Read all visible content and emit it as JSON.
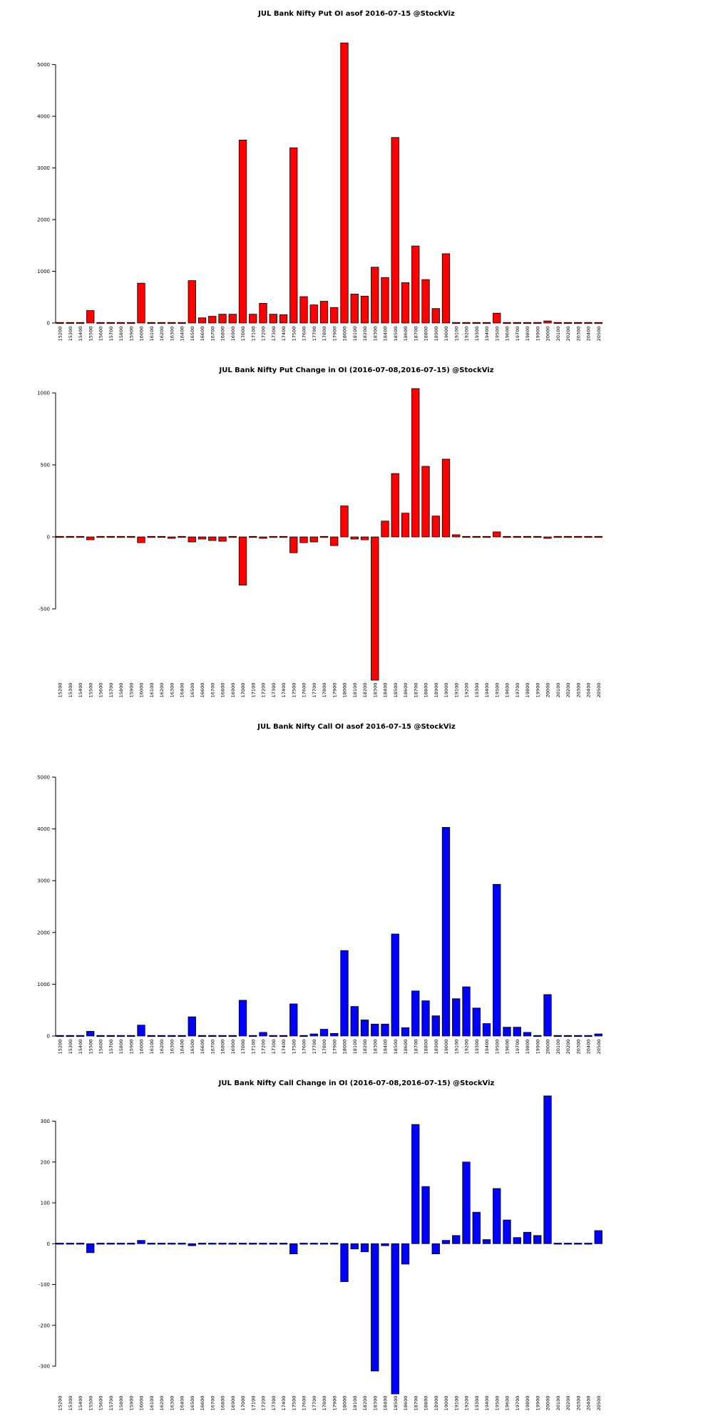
{
  "chart_data": [
    {
      "type": "bar",
      "title": "JUL Bank Nifty Put OI asof 2016-07-15 @StockViz",
      "bar_color": "#ff0000",
      "categories": [
        "15200",
        "15300",
        "15400",
        "15500",
        "15600",
        "15700",
        "15800",
        "15900",
        "16000",
        "16100",
        "16200",
        "16300",
        "16400",
        "16500",
        "16600",
        "16700",
        "16800",
        "16900",
        "17000",
        "17100",
        "17200",
        "17300",
        "17400",
        "17500",
        "17600",
        "17700",
        "17800",
        "17900",
        "18000",
        "18100",
        "18200",
        "18300",
        "18400",
        "18500",
        "18600",
        "18700",
        "18800",
        "18900",
        "19000",
        "19100",
        "19200",
        "19300",
        "19400",
        "19500",
        "19600",
        "19700",
        "19800",
        "19900",
        "20000",
        "20100",
        "20200",
        "20300",
        "20400",
        "20500"
      ],
      "values": [
        5,
        5,
        5,
        240,
        5,
        5,
        5,
        5,
        770,
        10,
        10,
        10,
        10,
        820,
        100,
        130,
        170,
        170,
        3540,
        170,
        380,
        170,
        160,
        3390,
        510,
        350,
        420,
        300,
        5420,
        560,
        520,
        1080,
        880,
        3590,
        780,
        1490,
        840,
        280,
        1340,
        10,
        10,
        5,
        5,
        190,
        5,
        5,
        5,
        5,
        40,
        5,
        5,
        5,
        5,
        5
      ],
      "yticks": [
        0,
        1000,
        2000,
        3000,
        4000,
        5000
      ],
      "ylim": [
        0,
        5450
      ]
    },
    {
      "type": "bar",
      "title": "JUL Bank Nifty Put Change in OI (2016-07-08,2016-07-15) @StockViz",
      "bar_color": "#ff0000",
      "categories": [
        "15200",
        "15300",
        "15400",
        "15500",
        "15600",
        "15700",
        "15800",
        "15900",
        "16000",
        "16100",
        "16200",
        "16300",
        "16400",
        "16500",
        "16600",
        "16700",
        "16800",
        "16900",
        "17000",
        "17100",
        "17200",
        "17300",
        "17400",
        "17500",
        "17600",
        "17700",
        "17800",
        "17900",
        "18000",
        "18100",
        "18200",
        "18300",
        "18400",
        "18500",
        "18600",
        "18700",
        "18800",
        "18900",
        "19000",
        "19100",
        "19200",
        "19300",
        "19400",
        "19500",
        "19600",
        "19700",
        "19800",
        "19900",
        "20000",
        "20100",
        "20200",
        "20300",
        "20400",
        "20500"
      ],
      "values": [
        0,
        0,
        0,
        -20,
        0,
        0,
        0,
        0,
        -40,
        0,
        0,
        -10,
        0,
        -35,
        -15,
        -25,
        -30,
        0,
        -335,
        -5,
        -10,
        -5,
        0,
        -110,
        -40,
        -35,
        5,
        -60,
        215,
        -15,
        -20,
        -995,
        110,
        440,
        165,
        1030,
        490,
        145,
        540,
        15,
        5,
        0,
        0,
        35,
        0,
        0,
        0,
        0,
        -10,
        0,
        0,
        0,
        0,
        0
      ],
      "yticks": [
        -500,
        0,
        500,
        1000
      ],
      "ylim": [
        -1000,
        1030
      ]
    },
    {
      "type": "bar",
      "title": "JUL Bank Nifty Call OI asof 2016-07-15 @StockViz",
      "bar_color": "#0000ff",
      "categories": [
        "15200",
        "15300",
        "15400",
        "15500",
        "15600",
        "15700",
        "15800",
        "15900",
        "16000",
        "16100",
        "16200",
        "16300",
        "16400",
        "16500",
        "16600",
        "16700",
        "16800",
        "16900",
        "17000",
        "17100",
        "17200",
        "17300",
        "17400",
        "17500",
        "17600",
        "17700",
        "17800",
        "17900",
        "18000",
        "18100",
        "18200",
        "18300",
        "18400",
        "18500",
        "18600",
        "18700",
        "18800",
        "18900",
        "19000",
        "19100",
        "19200",
        "19300",
        "19400",
        "19500",
        "19600",
        "19700",
        "19800",
        "19900",
        "20000",
        "20100",
        "20200",
        "20300",
        "20400",
        "20500"
      ],
      "values": [
        5,
        5,
        5,
        90,
        5,
        5,
        5,
        5,
        210,
        5,
        5,
        5,
        5,
        370,
        5,
        5,
        10,
        10,
        690,
        5,
        70,
        15,
        10,
        620,
        20,
        40,
        130,
        50,
        1650,
        570,
        310,
        230,
        230,
        1970,
        160,
        870,
        680,
        390,
        4030,
        720,
        950,
        540,
        240,
        2930,
        170,
        170,
        70,
        20,
        800,
        5,
        5,
        5,
        5,
        40
      ],
      "yticks": [
        0,
        1000,
        2000,
        3000,
        4000,
        5000
      ],
      "ylim": [
        0,
        5000
      ]
    },
    {
      "type": "bar",
      "title": "JUL Bank Nifty Call Change in OI (2016-07-08,2016-07-15) @StockViz",
      "bar_color": "#0000ff",
      "categories": [
        "15200",
        "15300",
        "15400",
        "15500",
        "15600",
        "15700",
        "15800",
        "15900",
        "16000",
        "16100",
        "16200",
        "16300",
        "16400",
        "16500",
        "16600",
        "16700",
        "16800",
        "16900",
        "17000",
        "17100",
        "17200",
        "17300",
        "17400",
        "17500",
        "17600",
        "17700",
        "17800",
        "17900",
        "18000",
        "18100",
        "18200",
        "18300",
        "18400",
        "18500",
        "18600",
        "18700",
        "18800",
        "18900",
        "19000",
        "19100",
        "19200",
        "19300",
        "19400",
        "19500",
        "19600",
        "19700",
        "19800",
        "19900",
        "20000",
        "20100",
        "20200",
        "20300",
        "20400",
        "20500"
      ],
      "values": [
        0,
        0,
        0,
        -22,
        0,
        0,
        0,
        0,
        8,
        0,
        0,
        0,
        0,
        -5,
        0,
        0,
        0,
        0,
        2,
        0,
        0,
        0,
        0,
        -25,
        2,
        2,
        0,
        0,
        -93,
        -13,
        -20,
        -312,
        -5,
        -368,
        -50,
        292,
        140,
        -25,
        8,
        20,
        200,
        77,
        10,
        135,
        58,
        15,
        28,
        20,
        362,
        0,
        0,
        0,
        0,
        32
      ],
      "yticks": [
        -300,
        -200,
        -100,
        0,
        100,
        200,
        300
      ],
      "ylim": [
        -368,
        362
      ]
    }
  ]
}
